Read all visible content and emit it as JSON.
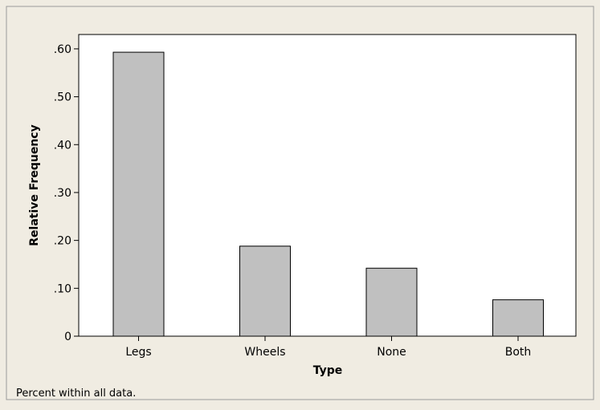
{
  "chart_data": {
    "type": "bar",
    "title": "",
    "xlabel": "Type",
    "ylabel": "Relative Frequency",
    "categories": [
      "Legs",
      "Wheels",
      "None",
      "Both"
    ],
    "values": [
      0.593,
      0.188,
      0.142,
      0.076
    ],
    "ylim": [
      0,
      0.63
    ],
    "yticks": [
      0,
      0.1,
      0.2,
      0.3,
      0.4,
      0.5,
      0.6
    ],
    "ytick_labels": [
      "0",
      ".10",
      ".20",
      ".30",
      ".40",
      ".50",
      ".60"
    ],
    "grid": false,
    "footnote": "Percent within all data.",
    "colors": {
      "background": "#f0ece2",
      "plot_area": "#ffffff",
      "bar_fill": "#c0c0c0",
      "bar_stroke": "#000000"
    }
  }
}
